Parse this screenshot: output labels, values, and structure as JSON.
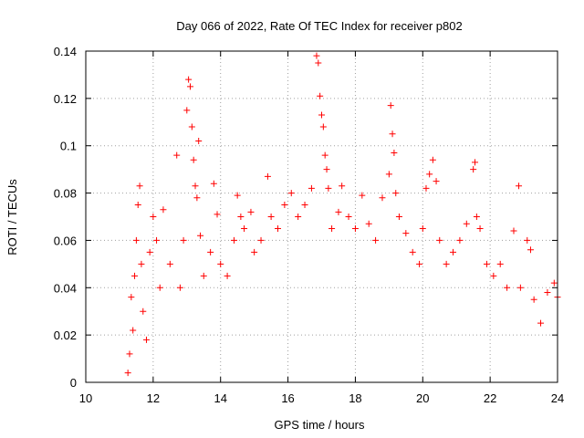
{
  "chart_data": {
    "type": "scatter",
    "title": "Day 066 of 2022, Rate Of TEC Index for receiver p802",
    "xlabel": "GPS time / hours",
    "ylabel": "ROTI / TECUs",
    "xlim": [
      10,
      24
    ],
    "ylim": [
      0,
      0.14
    ],
    "x_ticks": [
      "10",
      "12",
      "14",
      "16",
      "18",
      "20",
      "22",
      "24"
    ],
    "y_ticks": [
      "0",
      "0.02",
      "0.04",
      "0.06",
      "0.08",
      "0.1",
      "0.12",
      "0.14"
    ],
    "grid": true,
    "marker": "+",
    "color": "#ff0000",
    "series": [
      {
        "values": [
          [
            11.25,
            0.004
          ],
          [
            11.3,
            0.012
          ],
          [
            11.35,
            0.036
          ],
          [
            11.4,
            0.022
          ],
          [
            11.45,
            0.045
          ],
          [
            11.5,
            0.06
          ],
          [
            11.55,
            0.075
          ],
          [
            11.6,
            0.083
          ],
          [
            11.65,
            0.05
          ],
          [
            11.7,
            0.03
          ],
          [
            11.8,
            0.018
          ],
          [
            11.9,
            0.055
          ],
          [
            12.0,
            0.07
          ],
          [
            12.1,
            0.06
          ],
          [
            12.2,
            0.04
          ],
          [
            12.3,
            0.073
          ],
          [
            12.5,
            0.05
          ],
          [
            12.7,
            0.096
          ],
          [
            12.8,
            0.04
          ],
          [
            12.9,
            0.06
          ],
          [
            13.0,
            0.115
          ],
          [
            13.05,
            0.128
          ],
          [
            13.1,
            0.125
          ],
          [
            13.15,
            0.108
          ],
          [
            13.2,
            0.094
          ],
          [
            13.25,
            0.083
          ],
          [
            13.3,
            0.078
          ],
          [
            13.35,
            0.102
          ],
          [
            13.4,
            0.062
          ],
          [
            13.5,
            0.045
          ],
          [
            13.7,
            0.055
          ],
          [
            13.8,
            0.084
          ],
          [
            13.9,
            0.071
          ],
          [
            14.0,
            0.05
          ],
          [
            14.2,
            0.045
          ],
          [
            14.4,
            0.06
          ],
          [
            14.5,
            0.079
          ],
          [
            14.6,
            0.07
          ],
          [
            14.7,
            0.065
          ],
          [
            14.9,
            0.072
          ],
          [
            15.0,
            0.055
          ],
          [
            15.2,
            0.06
          ],
          [
            15.4,
            0.087
          ],
          [
            15.5,
            0.07
          ],
          [
            15.7,
            0.065
          ],
          [
            15.9,
            0.075
          ],
          [
            16.1,
            0.08
          ],
          [
            16.3,
            0.07
          ],
          [
            16.5,
            0.075
          ],
          [
            16.7,
            0.082
          ],
          [
            16.85,
            0.138
          ],
          [
            16.9,
            0.135
          ],
          [
            16.95,
            0.121
          ],
          [
            17.0,
            0.113
          ],
          [
            17.05,
            0.108
          ],
          [
            17.1,
            0.096
          ],
          [
            17.15,
            0.09
          ],
          [
            17.2,
            0.082
          ],
          [
            17.3,
            0.065
          ],
          [
            17.5,
            0.072
          ],
          [
            17.6,
            0.083
          ],
          [
            17.8,
            0.07
          ],
          [
            18.0,
            0.065
          ],
          [
            18.2,
            0.079
          ],
          [
            18.4,
            0.067
          ],
          [
            18.6,
            0.06
          ],
          [
            18.8,
            0.078
          ],
          [
            19.0,
            0.088
          ],
          [
            19.05,
            0.117
          ],
          [
            19.1,
            0.105
          ],
          [
            19.15,
            0.097
          ],
          [
            19.2,
            0.08
          ],
          [
            19.3,
            0.07
          ],
          [
            19.5,
            0.063
          ],
          [
            19.7,
            0.055
          ],
          [
            19.9,
            0.05
          ],
          [
            20.0,
            0.065
          ],
          [
            20.1,
            0.082
          ],
          [
            20.2,
            0.088
          ],
          [
            20.3,
            0.094
          ],
          [
            20.4,
            0.085
          ],
          [
            20.5,
            0.06
          ],
          [
            20.7,
            0.05
          ],
          [
            20.9,
            0.055
          ],
          [
            21.1,
            0.06
          ],
          [
            21.3,
            0.067
          ],
          [
            21.5,
            0.09
          ],
          [
            21.55,
            0.093
          ],
          [
            21.6,
            0.07
          ],
          [
            21.7,
            0.065
          ],
          [
            21.9,
            0.05
          ],
          [
            22.1,
            0.045
          ],
          [
            22.3,
            0.05
          ],
          [
            22.5,
            0.04
          ],
          [
            22.7,
            0.064
          ],
          [
            22.85,
            0.083
          ],
          [
            22.9,
            0.04
          ],
          [
            23.1,
            0.06
          ],
          [
            23.2,
            0.056
          ],
          [
            23.3,
            0.035
          ],
          [
            23.5,
            0.025
          ],
          [
            23.7,
            0.038
          ],
          [
            23.9,
            0.042
          ],
          [
            24.0,
            0.036
          ]
        ]
      }
    ]
  }
}
